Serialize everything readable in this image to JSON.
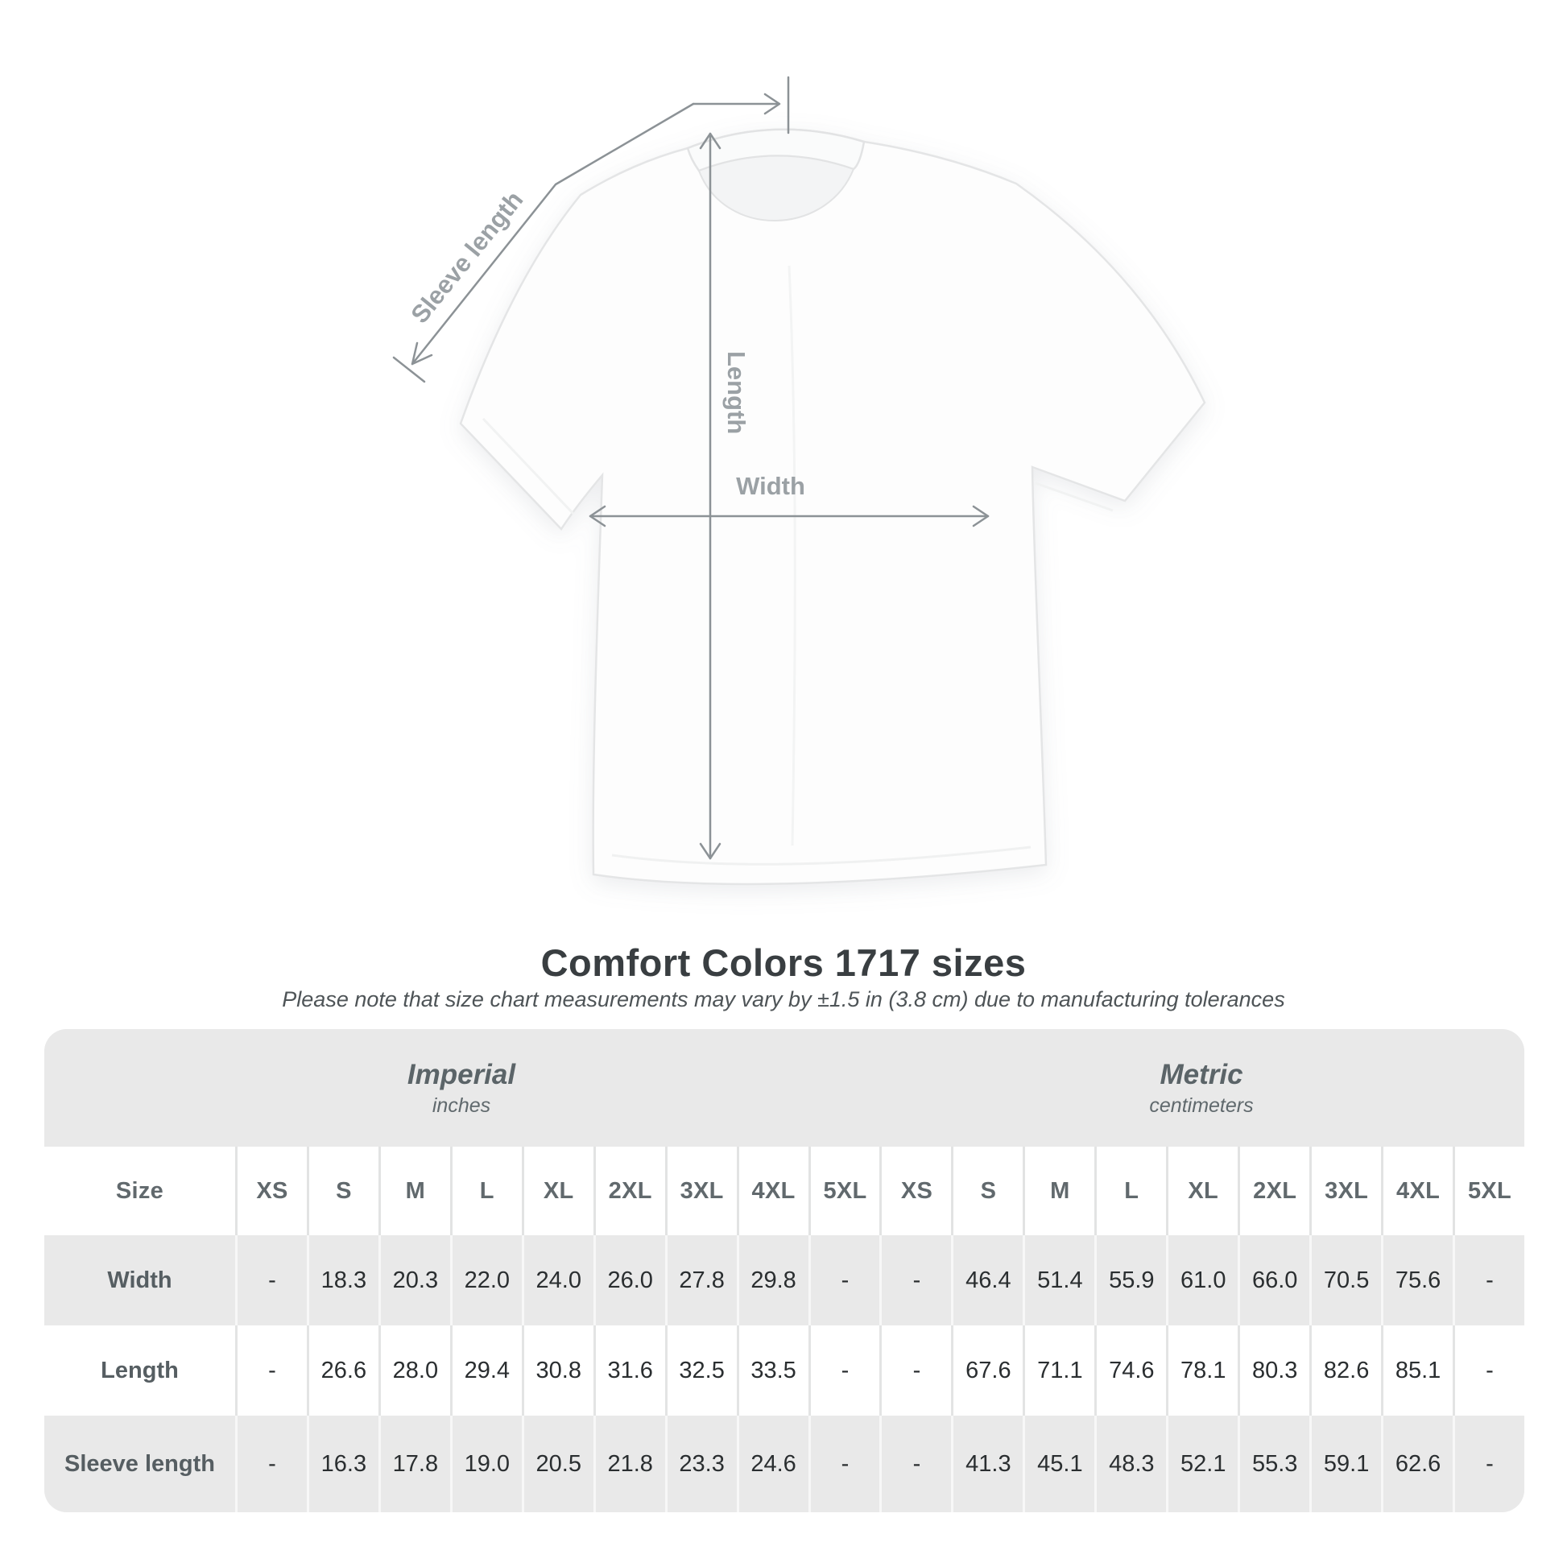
{
  "title": "Comfort Colors 1717 sizes",
  "subtitle": "Please note that size chart measurements may vary by ±1.5 in (3.8 cm) due to manufacturing tolerances",
  "diagram": {
    "sleeve_length_label": "Sleeve length",
    "length_label": "Length",
    "width_label": "Width",
    "line_color": "#8c9296",
    "label_color": "#9ba1a5"
  },
  "table": {
    "size_column_header": "Size",
    "sizes": [
      "XS",
      "S",
      "M",
      "L",
      "XL",
      "2XL",
      "3XL",
      "4XL",
      "5XL"
    ],
    "unit_groups": [
      {
        "name": "Imperial",
        "unit": "inches"
      },
      {
        "name": "Metric",
        "unit": "centimeters"
      }
    ],
    "rows": [
      {
        "label": "Width",
        "imperial": [
          "-",
          "18.3",
          "20.3",
          "22.0",
          "24.0",
          "26.0",
          "27.8",
          "29.8",
          "-"
        ],
        "metric": [
          "-",
          "46.4",
          "51.4",
          "55.9",
          "61.0",
          "66.0",
          "70.5",
          "75.6",
          "-"
        ]
      },
      {
        "label": "Length",
        "imperial": [
          "-",
          "26.6",
          "28.0",
          "29.4",
          "30.8",
          "31.6",
          "32.5",
          "33.5",
          "-"
        ],
        "metric": [
          "-",
          "67.6",
          "71.1",
          "74.6",
          "78.1",
          "80.3",
          "82.6",
          "85.1",
          "-"
        ]
      },
      {
        "label": "Sleeve length",
        "imperial": [
          "-",
          "16.3",
          "17.8",
          "19.0",
          "20.5",
          "21.8",
          "23.3",
          "24.6",
          "-"
        ],
        "metric": [
          "-",
          "41.3",
          "45.1",
          "48.3",
          "52.1",
          "55.3",
          "59.1",
          "62.6",
          "-"
        ]
      }
    ],
    "colors": {
      "panel_bg": "#e9e9e9",
      "white_row": "#ffffff",
      "header_text": "#61696d",
      "row_label_text": "#565e62",
      "value_text": "#2a2e30"
    }
  }
}
